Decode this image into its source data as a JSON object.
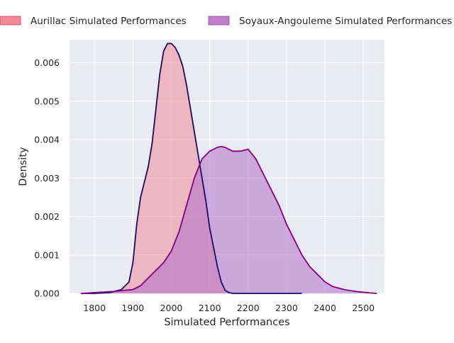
{
  "chart_data": {
    "type": "area",
    "title": "",
    "xlabel": "Simulated Performances",
    "ylabel": "Density",
    "xlim": [
      1735,
      2555
    ],
    "ylim": [
      0,
      0.0066
    ],
    "xticks": [
      1800,
      1900,
      2000,
      2100,
      2200,
      2300,
      2400,
      2500
    ],
    "yticks": [
      0.0,
      0.001,
      0.002,
      0.003,
      0.004,
      0.005,
      0.006
    ],
    "ytick_labels": [
      "0.000",
      "0.001",
      "0.002",
      "0.003",
      "0.004",
      "0.005",
      "0.006"
    ],
    "grid": true,
    "legend_position": "top, above plot",
    "series": [
      {
        "name": "Aurillac Simulated Performances",
        "fill_color": "#f08a97",
        "line_color": "#1a0a66",
        "x": [
          1765,
          1800,
          1840,
          1870,
          1890,
          1900,
          1910,
          1920,
          1930,
          1940,
          1950,
          1960,
          1970,
          1980,
          1990,
          2000,
          2010,
          2020,
          2030,
          2040,
          2050,
          2060,
          2070,
          2080,
          2090,
          2100,
          2110,
          2120,
          2130,
          2140,
          2150,
          2160,
          2200,
          2250,
          2340
        ],
        "y": [
          0.0,
          0.0,
          2e-05,
          0.0001,
          0.0003,
          0.0008,
          0.0018,
          0.0025,
          0.0029,
          0.0033,
          0.0039,
          0.0048,
          0.0057,
          0.0063,
          0.0065,
          0.0065,
          0.0064,
          0.0062,
          0.0059,
          0.0054,
          0.0048,
          0.0042,
          0.0036,
          0.003,
          0.0024,
          0.0017,
          0.0012,
          0.0007,
          0.0003,
          8e-05,
          2e-05,
          0.0,
          0.0,
          0.0,
          0.0
        ]
      },
      {
        "name": "Soyaux-Angouleme Simulated Performances",
        "fill_color": "#b070c8",
        "line_color": "#800080",
        "x": [
          1765,
          1800,
          1850,
          1880,
          1900,
          1920,
          1940,
          1960,
          1980,
          2000,
          2020,
          2040,
          2060,
          2080,
          2100,
          2120,
          2130,
          2140,
          2160,
          2180,
          2200,
          2220,
          2240,
          2260,
          2280,
          2300,
          2320,
          2340,
          2360,
          2380,
          2400,
          2420,
          2450,
          2480,
          2520,
          2535
        ],
        "y": [
          0.0,
          2e-05,
          5e-05,
          8e-05,
          0.0001,
          0.0002,
          0.0004,
          0.0006,
          0.0008,
          0.0011,
          0.0016,
          0.0023,
          0.003,
          0.0035,
          0.0037,
          0.0038,
          0.00382,
          0.0038,
          0.0037,
          0.0037,
          0.00375,
          0.0035,
          0.0031,
          0.0027,
          0.0023,
          0.0018,
          0.0014,
          0.001,
          0.0007,
          0.0005,
          0.0003,
          0.00018,
          0.0001,
          5e-05,
          1e-05,
          0.0
        ]
      }
    ]
  }
}
